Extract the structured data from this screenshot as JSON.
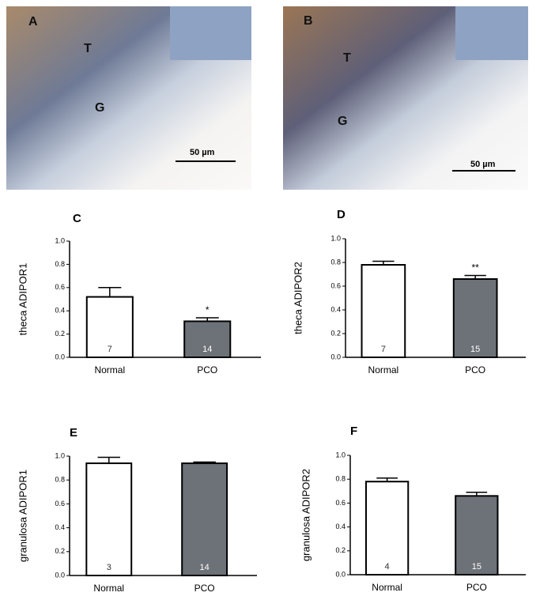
{
  "images": [
    {
      "label": "A",
      "annotations": [
        "T",
        "G"
      ],
      "scale_bar": "50 µm"
    },
    {
      "label": "B",
      "annotations": [
        "T",
        "G"
      ],
      "scale_bar": "50 µm"
    }
  ],
  "chart_data": [
    {
      "type": "bar",
      "panel": "C",
      "y_label": "theca ADIPOR1",
      "categories": [
        "Normal",
        "PCO"
      ],
      "values": [
        0.52,
        0.31
      ],
      "errors": [
        0.08,
        0.03
      ],
      "n": [
        7,
        14
      ],
      "significance": [
        null,
        "*"
      ],
      "colors": [
        "#ffffff",
        "#6d7278"
      ],
      "ylim": [
        0,
        1
      ],
      "yticks": [
        {
          "value": 0,
          "label": "0.0"
        },
        0.2,
        0.4,
        0.6,
        0.8,
        {
          "value": 1,
          "label": "1.0"
        }
      ]
    },
    {
      "type": "bar",
      "panel": "D",
      "y_label": "theca ADIPOR2",
      "categories": [
        "Normal",
        "PCO"
      ],
      "values": [
        0.78,
        0.66
      ],
      "errors": [
        0.03,
        0.03
      ],
      "n": [
        7,
        15
      ],
      "significance": [
        null,
        "**"
      ],
      "colors": [
        "#ffffff",
        "#6d7278"
      ],
      "ylim": [
        0,
        1
      ],
      "yticks": [
        {
          "value": 0,
          "label": "0.0"
        },
        0.2,
        0.4,
        0.6,
        0.8,
        {
          "value": 1,
          "label": "1.0"
        }
      ]
    },
    {
      "type": "bar",
      "panel": "E",
      "y_label": "granulosa  ADIPOR1",
      "categories": [
        "Normal",
        "PCO"
      ],
      "values": [
        0.94,
        0.94
      ],
      "errors": [
        0.05,
        0.01
      ],
      "n": [
        3,
        14
      ],
      "significance": [
        null,
        null
      ],
      "colors": [
        "#ffffff",
        "#6d7278"
      ],
      "ylim": [
        0,
        1
      ],
      "yticks": [
        {
          "value": 0,
          "label": "0.0"
        },
        0.2,
        0.4,
        0.6,
        0.8,
        {
          "value": 1,
          "label": "1.0"
        }
      ]
    },
    {
      "type": "bar",
      "panel": "F",
      "y_label": "granulosa ADIPOR2",
      "categories": [
        "Normal",
        "PCO"
      ],
      "values": [
        0.78,
        0.66
      ],
      "errors": [
        0.03,
        0.03
      ],
      "n": [
        4,
        15
      ],
      "significance": [
        null,
        null
      ],
      "colors": [
        "#ffffff",
        "#6d7278"
      ],
      "ylim": [
        0,
        1
      ],
      "yticks": [
        {
          "value": 0,
          "label": "0.0"
        },
        0.2,
        0.4,
        0.6,
        0.8,
        {
          "value": 1,
          "label": "1.0"
        }
      ]
    }
  ]
}
